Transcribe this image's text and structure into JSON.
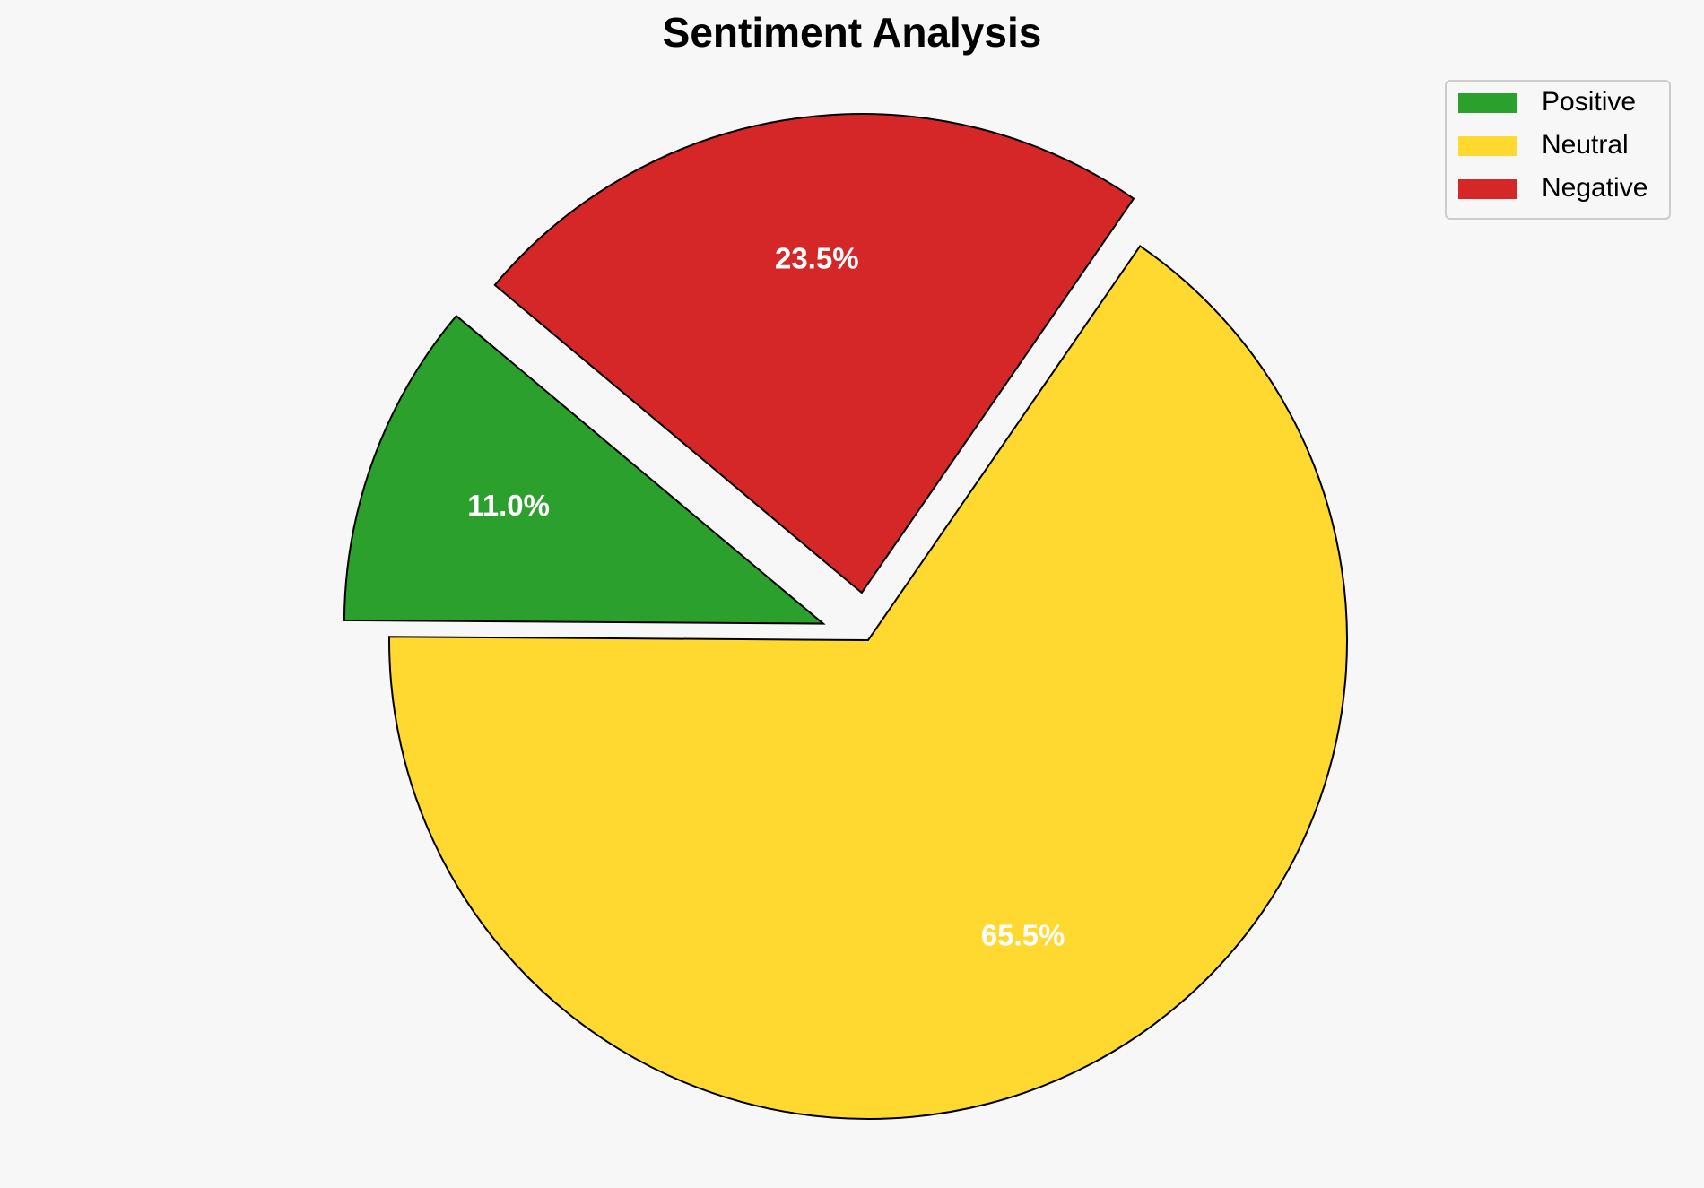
{
  "chart_data": {
    "type": "pie",
    "title": "Sentiment Analysis",
    "categories": [
      "Positive",
      "Neutral",
      "Negative"
    ],
    "values": [
      11.0,
      65.5,
      23.5
    ],
    "value_labels": [
      "11.0%",
      "65.5%",
      "23.5%"
    ],
    "colors": [
      "#2ca02c",
      "#ffd92f",
      "#d62728"
    ],
    "legend": "upper right"
  }
}
